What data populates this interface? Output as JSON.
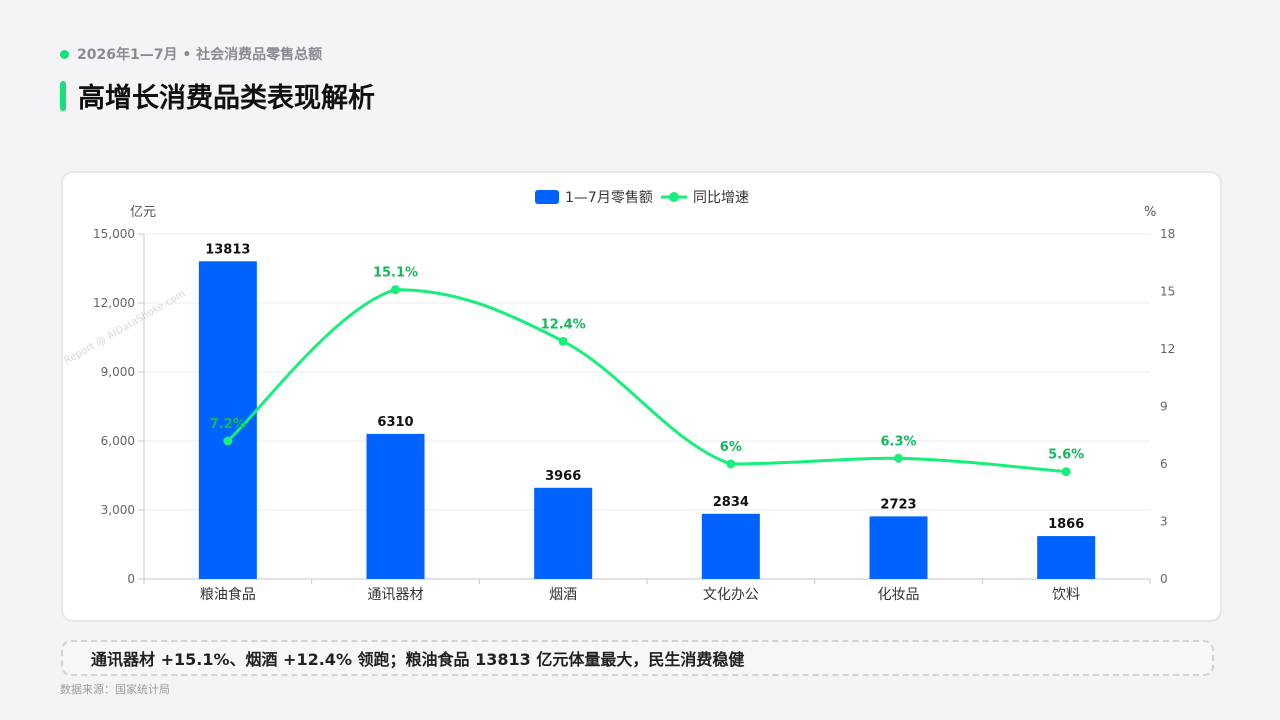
{
  "header": {
    "kicker": "2026年1—7月 • 社会消费品零售总额",
    "title": "高增长消费品类表现解析"
  },
  "colors": {
    "bar": "#0062ff",
    "line": "#16f07a",
    "line_label": "#12b85c",
    "accent": "#16e07a"
  },
  "chart_data": {
    "type": "bar",
    "categories": [
      "粮油食品",
      "通讯器材",
      "烟酒",
      "文化办公",
      "化妆品",
      "饮料"
    ],
    "series": [
      {
        "name": "1—7月零售额",
        "type": "bar",
        "axis": "left",
        "values": [
          13813,
          6310,
          3966,
          2834,
          2723,
          1866
        ],
        "labels": [
          "13813",
          "6310",
          "3966",
          "2834",
          "2723",
          "1866"
        ]
      },
      {
        "name": "同比增速",
        "type": "line",
        "axis": "right",
        "values": [
          7.2,
          15.1,
          12.4,
          6,
          6.3,
          5.6
        ],
        "labels": [
          "7.2%",
          "15.1%",
          "12.4%",
          "6%",
          "6.3%",
          "5.6%"
        ]
      }
    ],
    "y_left": {
      "label": "亿元",
      "ticks": [
        "0",
        "3,000",
        "6,000",
        "9,000",
        "12,000",
        "15,000"
      ],
      "min": 0,
      "max": 15000
    },
    "y_right": {
      "label": "%",
      "ticks": [
        "0",
        "3",
        "6",
        "9",
        "12",
        "15",
        "18"
      ],
      "min": 0,
      "max": 18
    },
    "legend_position": "top-center",
    "grid": true
  },
  "conclusion": "通讯器材 +15.1%、烟酒 +12.4% 领跑；粮油食品 13813 亿元体量最大，民生消费稳健",
  "source": "数据来源：国家统计局",
  "watermark": "Report @ AIDataShoke.com"
}
